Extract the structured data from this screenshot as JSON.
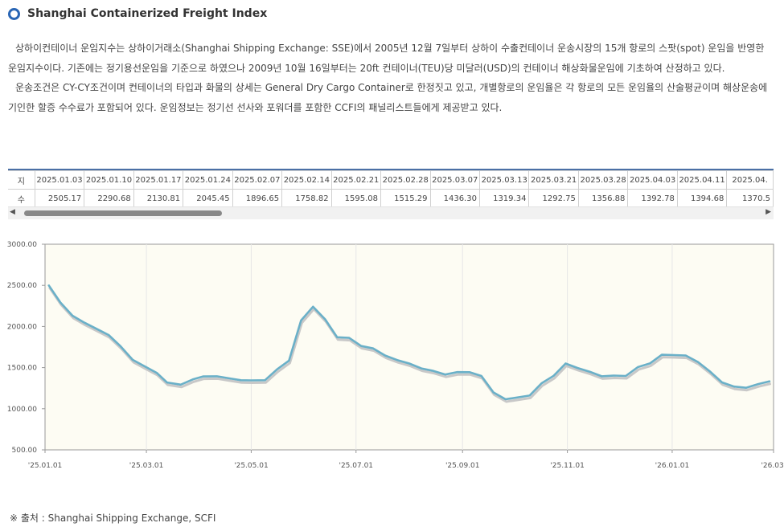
{
  "header": {
    "title": "Shanghai Containerized Freight Index"
  },
  "description": {
    "p1": "상하이컨테이너 운임지수는 상하이거래소(Shanghai Shipping Exchange: SSE)에서 2005년 12월 7일부터 상하이 수출컨테이너 운송시장의 15개 항로의 스팟(spot) 운임을 반영한 운임지수이다. 기존에는 정기용선운임을 기준으로 하였으나 2009년 10월 16일부터는 20ft 컨테이너(TEU)당 미달러(USD)의 컨테이너 해상화물운임에 기초하여 산정하고 있다.",
    "p2": "운송조건은 CY-CY조건이며 컨테이너의 타입과 화물의 상세는 General Dry Cargo Container로 한정짓고 있고, 개별항로의 운임율은 각 항로의 모든 운임율의 산술평균이며 해상운송에 기인한 할증 수수료가 포함되어 있다. 운임정보는 정기선 선사와 포워더를 포함한 CCFI의 패널리스트들에게 제공받고 있다."
  },
  "table": {
    "row_labels": [
      "지",
      "수"
    ],
    "dates": [
      "2025.01.03",
      "2025.01.10",
      "2025.01.17",
      "2025.01.24",
      "2025.02.07",
      "2025.02.14",
      "2025.02.21",
      "2025.02.28",
      "2025.03.07",
      "2025.03.13",
      "2025.03.21",
      "2025.03.28",
      "2025.04.03",
      "2025.04.11",
      "2025.04."
    ],
    "values": [
      "2505.17",
      "2290.68",
      "2130.81",
      "2045.45",
      "1896.65",
      "1758.82",
      "1595.08",
      "1515.29",
      "1436.30",
      "1319.34",
      "1292.75",
      "1356.88",
      "1392.78",
      "1394.68",
      "1370.5"
    ]
  },
  "scrollbar": {
    "left_arrow": "◀",
    "right_arrow": "▶"
  },
  "chart_data": {
    "type": "line",
    "title": "",
    "xlabel": "",
    "ylabel": "",
    "ylim": [
      500,
      3000
    ],
    "yticks": [
      "3000.00",
      "2500.00",
      "2000.00",
      "1500.00",
      "1000.00",
      "500.00"
    ],
    "ytick_values": [
      3000,
      2500,
      2000,
      1500,
      1000,
      500
    ],
    "xticks": [
      "'25.01.01",
      "'25.03.01",
      "'25.05.01",
      "'25.07.01",
      "'25.09.01",
      "'25.11.01",
      "'26.01.01",
      "'26.03."
    ],
    "xtick_dates": [
      "2025-01-01",
      "2025-03-01",
      "2025-05-01",
      "2025-07-01",
      "2025-09-01",
      "2025-11-01",
      "2026-01-01",
      "2026-03-01"
    ],
    "xlim": [
      "2025-01-01",
      "2026-03-01"
    ],
    "grid": "vertical",
    "line_color": "#6ab0c8",
    "series": [
      {
        "x": [
          "2025-01-03",
          "2025-01-10",
          "2025-01-17",
          "2025-01-24",
          "2025-02-07",
          "2025-02-14",
          "2025-02-21",
          "2025-02-28",
          "2025-03-07",
          "2025-03-13",
          "2025-03-21",
          "2025-03-28",
          "2025-04-03",
          "2025-04-11",
          "2025-04-18",
          "2025-04-25",
          "2025-05-01",
          "2025-05-09",
          "2025-05-16",
          "2025-05-23",
          "2025-05-30",
          "2025-06-06",
          "2025-06-13",
          "2025-06-20",
          "2025-06-27",
          "2025-07-04",
          "2025-07-11",
          "2025-07-18",
          "2025-07-25",
          "2025-08-01",
          "2025-08-08",
          "2025-08-15",
          "2025-08-22",
          "2025-08-29",
          "2025-09-05",
          "2025-09-12",
          "2025-09-19",
          "2025-09-26",
          "2025-10-10",
          "2025-10-17",
          "2025-10-24",
          "2025-10-31",
          "2025-11-07",
          "2025-11-14",
          "2025-11-21",
          "2025-11-28",
          "2025-12-05",
          "2025-12-12",
          "2025-12-19",
          "2025-12-26",
          "2026-01-02",
          "2026-01-09",
          "2026-01-16",
          "2026-01-23",
          "2026-01-30",
          "2026-02-06",
          "2026-02-13",
          "2026-02-20",
          "2026-02-27"
        ],
        "values": [
          2505.17,
          2290.68,
          2130.81,
          2045.45,
          1896.65,
          1758.82,
          1595.08,
          1515.29,
          1436.3,
          1319.34,
          1292.75,
          1356.88,
          1392.78,
          1394.68,
          1370.5,
          1347,
          1345,
          1347,
          1479,
          1585,
          2073,
          2240,
          2088,
          1869,
          1861,
          1763,
          1733,
          1646,
          1592,
          1550,
          1490,
          1460,
          1416,
          1445,
          1444,
          1398,
          1198,
          1115,
          1160,
          1310,
          1400,
          1550,
          1495,
          1450,
          1395,
          1403,
          1398,
          1506,
          1551,
          1656,
          1652,
          1646,
          1568,
          1453,
          1320,
          1270,
          1255,
          1300,
          1335
        ]
      }
    ]
  },
  "source": {
    "text": "※ 출처 : Shanghai Shipping Exchange, SCFI"
  }
}
